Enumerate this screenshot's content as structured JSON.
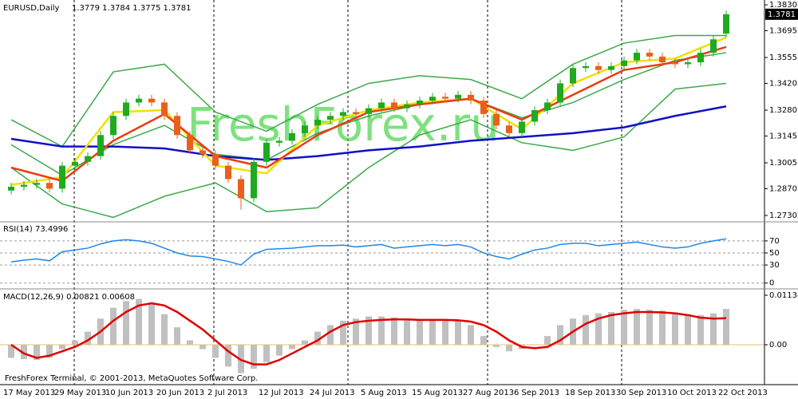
{
  "chart_data": [
    {
      "type": "candlestick",
      "title": "EURUSD,Daily",
      "subtitle": "1.3779 1.3784 1.3775 1.3781",
      "categories": [
        "17 May 2013",
        null,
        null,
        null,
        "29 May 2013",
        null,
        null,
        null,
        "10 Jun 2013",
        null,
        null,
        null,
        "20 Jun 2013",
        null,
        null,
        null,
        "2 Jul 2013",
        null,
        null,
        null,
        "12 Jul 2013",
        null,
        null,
        null,
        "24 Jul 2013",
        null,
        null,
        null,
        "5 Aug 2013",
        null,
        null,
        null,
        "15 Aug 2013",
        null,
        null,
        null,
        "27 Aug 2013",
        null,
        null,
        null,
        "6 Sep 2013",
        null,
        null,
        null,
        "18 Sep 2013",
        null,
        null,
        null,
        "30 Sep 2013",
        null,
        null,
        null,
        "10 Oct 2013",
        null,
        null,
        null,
        "22 Oct 2013"
      ],
      "open": [
        1.286,
        1.288,
        1.289,
        1.29,
        1.287,
        1.299,
        1.301,
        1.304,
        1.315,
        1.325,
        1.332,
        1.334,
        1.332,
        1.325,
        1.315,
        1.307,
        1.305,
        1.299,
        1.292,
        1.282,
        1.301,
        1.311,
        1.312,
        1.316,
        1.32,
        1.323,
        1.325,
        1.327,
        1.326,
        1.329,
        1.332,
        1.329,
        1.331,
        1.333,
        1.335,
        1.334,
        1.336,
        1.333,
        1.326,
        1.32,
        1.316,
        1.322,
        1.328,
        1.332,
        1.342,
        1.35,
        1.351,
        1.349,
        1.351,
        1.354,
        1.358,
        1.356,
        1.353,
        1.352,
        1.353,
        1.358,
        1.368
      ],
      "high": [
        1.29,
        1.291,
        1.292,
        1.292,
        1.301,
        1.303,
        1.306,
        1.317,
        1.327,
        1.334,
        1.336,
        1.336,
        1.334,
        1.327,
        1.317,
        1.309,
        1.307,
        1.301,
        1.294,
        1.303,
        1.313,
        1.314,
        1.318,
        1.322,
        1.325,
        1.327,
        1.329,
        1.329,
        1.331,
        1.334,
        1.334,
        1.333,
        1.335,
        1.337,
        1.337,
        1.338,
        1.338,
        1.335,
        1.328,
        1.322,
        1.324,
        1.33,
        1.334,
        1.344,
        1.352,
        1.353,
        1.353,
        1.353,
        1.356,
        1.36,
        1.36,
        1.358,
        1.355,
        1.355,
        1.36,
        1.367,
        1.38
      ],
      "low": [
        1.284,
        1.286,
        1.287,
        1.285,
        1.285,
        1.297,
        1.299,
        1.302,
        1.313,
        1.323,
        1.33,
        1.33,
        1.323,
        1.313,
        1.305,
        1.303,
        1.297,
        1.29,
        1.276,
        1.28,
        1.299,
        1.309,
        1.31,
        1.314,
        1.318,
        1.321,
        1.323,
        1.324,
        1.324,
        1.327,
        1.327,
        1.327,
        1.329,
        1.331,
        1.332,
        1.332,
        1.331,
        1.324,
        1.318,
        1.314,
        1.314,
        1.32,
        1.326,
        1.33,
        1.34,
        1.348,
        1.347,
        1.347,
        1.349,
        1.352,
        1.354,
        1.351,
        1.35,
        1.35,
        1.351,
        1.356,
        1.366
      ],
      "close": [
        1.288,
        1.289,
        1.29,
        1.287,
        1.299,
        1.301,
        1.304,
        1.315,
        1.325,
        1.332,
        1.334,
        1.332,
        1.325,
        1.315,
        1.307,
        1.305,
        1.299,
        1.292,
        1.282,
        1.301,
        1.311,
        1.312,
        1.316,
        1.32,
        1.323,
        1.325,
        1.327,
        1.326,
        1.329,
        1.332,
        1.329,
        1.331,
        1.333,
        1.335,
        1.334,
        1.336,
        1.333,
        1.326,
        1.32,
        1.316,
        1.322,
        1.328,
        1.332,
        1.342,
        1.35,
        1.351,
        1.349,
        1.351,
        1.354,
        1.358,
        1.356,
        1.353,
        1.352,
        1.353,
        1.358,
        1.365,
        1.3781
      ],
      "up_color": "#1faa1f",
      "down_color": "#e8601c",
      "overlays": [
        {
          "color": "#3caa4a",
          "values": [
            1.323,
            1.309,
            1.348,
            1.352,
            1.327,
            1.317,
            1.331,
            1.342,
            1.346,
            1.344,
            1.334,
            1.352,
            1.363,
            1.367,
            1.367
          ]
        },
        {
          "color": "#3caa4a",
          "values": [
            1.31,
            1.294,
            1.31,
            1.32,
            1.305,
            1.302,
            1.316,
            1.325,
            1.331,
            1.334,
            1.324,
            1.332,
            1.344,
            1.354,
            1.358
          ]
        },
        {
          "color": "#3caa4a",
          "values": [
            1.298,
            1.279,
            1.272,
            1.283,
            1.29,
            1.275,
            1.277,
            1.298,
            1.315,
            1.323,
            1.311,
            1.307,
            1.314,
            1.339,
            1.342
          ]
        },
        {
          "color": "#1010c8",
          "values": [
            1.313,
            1.309,
            1.309,
            1.308,
            1.304,
            1.302,
            1.304,
            1.307,
            1.309,
            1.312,
            1.314,
            1.316,
            1.319,
            1.325,
            1.33
          ]
        },
        {
          "color": "#f0e000",
          "values": [
            1.289,
            1.293,
            1.327,
            1.328,
            1.299,
            1.295,
            1.32,
            1.328,
            1.332,
            1.334,
            1.318,
            1.342,
            1.353,
            1.355,
            1.366
          ]
        },
        {
          "color": "#ee3a10",
          "values": [
            1.298,
            1.291,
            1.312,
            1.326,
            1.304,
            1.298,
            1.315,
            1.327,
            1.331,
            1.334,
            1.323,
            1.336,
            1.349,
            1.353,
            1.361
          ]
        }
      ],
      "ylim": [
        1.2705,
        1.3847
      ],
      "yticks": [
        {
          "value": 1.383,
          "label": "1.3830"
        },
        1.3695,
        1.3555,
        {
          "value": 1.342,
          "label": "1.3420"
        },
        {
          "value": 1.328,
          "label": "1.3280"
        },
        1.3145,
        1.3005,
        {
          "value": 1.287,
          "label": "1.2870"
        },
        {
          "value": 1.273,
          "label": "1.2730"
        }
      ],
      "grid": false
    },
    {
      "type": "line",
      "title": "RSI(14) 73.4996",
      "color": "#1e88e8",
      "values": [
        35,
        38,
        40,
        37,
        52,
        55,
        58,
        65,
        70,
        72,
        70,
        66,
        58,
        50,
        45,
        44,
        40,
        36,
        30,
        48,
        56,
        57,
        58,
        60,
        62,
        62,
        63,
        60,
        62,
        64,
        58,
        60,
        62,
        64,
        62,
        64,
        60,
        50,
        44,
        40,
        48,
        55,
        58,
        64,
        66,
        66,
        62,
        64,
        66,
        68,
        64,
        60,
        58,
        60,
        66,
        70,
        73.4996
      ],
      "ylim": [
        -7,
        99
      ],
      "yticks": [
        70,
        50,
        30,
        0
      ],
      "grid": true
    },
    {
      "type": "bar",
      "title": "MACD(12,26,9) 0.00821 0.00608",
      "color": "#c0c0c0",
      "values": [
        -0.003,
        -0.0033,
        -0.0035,
        -0.003,
        -0.001,
        0.001,
        0.003,
        0.006,
        0.0085,
        0.01,
        0.0105,
        0.0095,
        0.007,
        0.004,
        0.001,
        -0.001,
        -0.003,
        -0.005,
        -0.0065,
        -0.0055,
        -0.004,
        -0.0025,
        -0.001,
        0.001,
        0.003,
        0.0045,
        0.0055,
        0.006,
        0.0065,
        0.0065,
        0.0063,
        0.006,
        0.0058,
        0.0057,
        0.0055,
        0.0055,
        0.0045,
        0.002,
        -0.0005,
        -0.0015,
        -0.001,
        0.0,
        0.002,
        0.0045,
        0.006,
        0.0068,
        0.0072,
        0.0075,
        0.008,
        0.0082,
        0.008,
        0.0078,
        0.0074,
        0.007,
        0.0068,
        0.0072,
        0.00821
      ],
      "line": {
        "color": "#e00000",
        "values": [
          0.0,
          -0.002,
          -0.003,
          -0.0025,
          -0.0015,
          -0.0005,
          0.001,
          0.003,
          0.0055,
          0.0075,
          0.009,
          0.0095,
          0.009,
          0.0075,
          0.0055,
          0.0035,
          0.001,
          -0.0015,
          -0.0035,
          -0.0045,
          -0.0045,
          -0.0035,
          -0.002,
          -0.0005,
          0.001,
          0.003,
          0.0045,
          0.0052,
          0.0055,
          0.0057,
          0.0058,
          0.0058,
          0.0057,
          0.0057,
          0.0057,
          0.0056,
          0.0053,
          0.0045,
          0.003,
          0.001,
          -0.0005,
          -0.0008,
          -0.0005,
          0.001,
          0.003,
          0.0048,
          0.006,
          0.0068,
          0.0072,
          0.0075,
          0.0075,
          0.0074,
          0.0072,
          0.0068,
          0.0062,
          0.006,
          0.00608
        ]
      },
      "ylim": [
        -0.00878,
        0.01244
      ],
      "yticks": [
        0.01134,
        {
          "value": 0,
          "label": "0.00"
        }
      ],
      "grid": false
    }
  ],
  "watermark": "FreshForex.ru",
  "footer": "FreshForex Terminal, © 2001-2013, MetaQuotes Software Corp."
}
